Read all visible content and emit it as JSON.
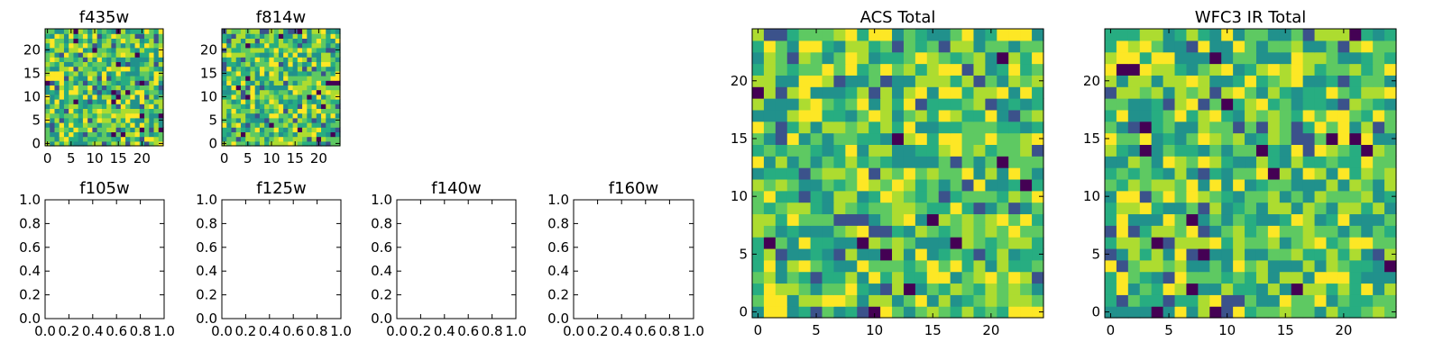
{
  "chart_data": [
    {
      "id": "f435w",
      "type": "heatmap",
      "title": "f435w",
      "xticks": [
        "0",
        "5",
        "10",
        "15",
        "20"
      ],
      "yticks": [
        "0",
        "5",
        "10",
        "15",
        "20"
      ],
      "xlim": [
        -0.5,
        24.5
      ],
      "ylim": [
        -0.5,
        24.5
      ],
      "grid_size": 25,
      "colormap": "viridis",
      "data": "random"
    },
    {
      "id": "f814w",
      "type": "heatmap",
      "title": "f814w",
      "xticks": [
        "0",
        "5",
        "10",
        "15",
        "20"
      ],
      "yticks": [
        "0",
        "5",
        "10",
        "15",
        "20"
      ],
      "xlim": [
        -0.5,
        24.5
      ],
      "ylim": [
        -0.5,
        24.5
      ],
      "grid_size": 25,
      "colormap": "viridis",
      "data": "random"
    },
    {
      "id": "f105w",
      "type": "empty",
      "title": "f105w",
      "xticks": [
        "0.0",
        "0.2",
        "0.4",
        "0.6",
        "0.8",
        "1.0"
      ],
      "yticks": [
        "0.0",
        "0.2",
        "0.4",
        "0.6",
        "0.8",
        "1.0"
      ],
      "xlim": [
        0,
        1
      ],
      "ylim": [
        0,
        1
      ]
    },
    {
      "id": "f125w",
      "type": "empty",
      "title": "f125w",
      "xticks": [
        "0.0",
        "0.2",
        "0.4",
        "0.6",
        "0.8",
        "1.0"
      ],
      "yticks": [
        "0.0",
        "0.2",
        "0.4",
        "0.6",
        "0.8",
        "1.0"
      ],
      "xlim": [
        0,
        1
      ],
      "ylim": [
        0,
        1
      ]
    },
    {
      "id": "f140w",
      "type": "empty",
      "title": "f140w",
      "xticks": [
        "0.0",
        "0.2",
        "0.4",
        "0.6",
        "0.8",
        "1.0"
      ],
      "yticks": [
        "0.0",
        "0.2",
        "0.4",
        "0.6",
        "0.8",
        "1.0"
      ],
      "xlim": [
        0,
        1
      ],
      "ylim": [
        0,
        1
      ]
    },
    {
      "id": "f160w",
      "type": "empty",
      "title": "f160w",
      "xticks": [
        "0.0",
        "0.2",
        "0.4",
        "0.6",
        "0.8",
        "1.0"
      ],
      "yticks": [
        "0.0",
        "0.2",
        "0.4",
        "0.6",
        "0.8",
        "1.0"
      ],
      "xlim": [
        0,
        1
      ],
      "ylim": [
        0,
        1
      ]
    },
    {
      "id": "acs-total",
      "type": "heatmap",
      "title": "ACS Total",
      "xticks": [
        "0",
        "5",
        "10",
        "15",
        "20"
      ],
      "yticks": [
        "0",
        "5",
        "10",
        "15",
        "20"
      ],
      "xlim": [
        -0.5,
        24.5
      ],
      "ylim": [
        -0.5,
        24.5
      ],
      "grid_size": 25,
      "colormap": "viridis",
      "data": "random"
    },
    {
      "id": "wfc3-ir-total",
      "type": "heatmap",
      "title": "WFC3 IR Total",
      "xticks": [
        "0",
        "5",
        "10",
        "15",
        "20"
      ],
      "yticks": [
        "0",
        "5",
        "10",
        "15",
        "20"
      ],
      "xlim": [
        -0.5,
        24.5
      ],
      "ylim": [
        -0.5,
        24.5
      ],
      "grid_size": 25,
      "colormap": "viridis",
      "data": "random"
    }
  ],
  "colors": {
    "viridis": [
      "#440154",
      "#3b528b",
      "#21918c",
      "#27ad81",
      "#5ec962",
      "#addc30",
      "#fde725"
    ],
    "axis": "#000000",
    "background": "#ffffff"
  }
}
